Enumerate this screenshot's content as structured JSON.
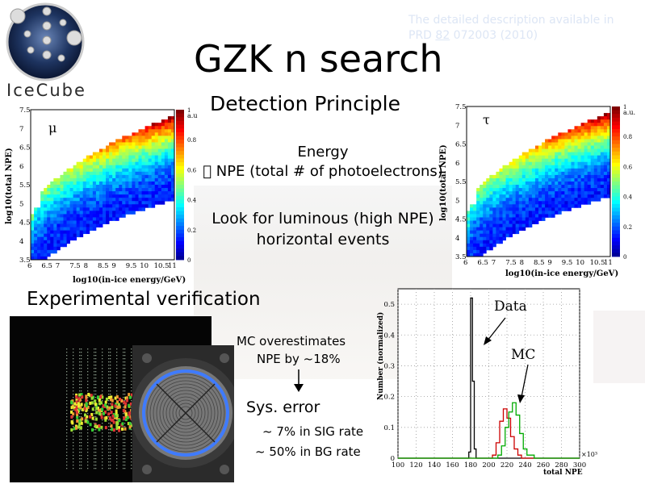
{
  "slide": {
    "reference_line1": "The detailed description available in",
    "reference_prefix": "PRD ",
    "reference_volume": "82",
    "reference_rest": " 072003 (2010)",
    "title": "GZK n search",
    "subtitle": "Detection Principle",
    "energy_label": "Energy",
    "npe_label": "\u0000 NPE (total # of photoelectrons)",
    "look_line1": "Look for luminous (high NPE)",
    "look_line2": "horizontal events",
    "experimental": "Experimental verification",
    "mc_line1": "MC  overestimates",
    "mc_line2": "NPE by ~18%",
    "sys_error": "Sys. error",
    "sig_rate": "~ 7% in SIG rate",
    "bg_rate": "~ 50% in BG rate",
    "logo_text": "IceCube"
  },
  "heatmap_left": {
    "particle": "μ",
    "ylabel": "log10(total NPE)",
    "xlabel": "log10(in-ice energy/GeV)",
    "colorbar_label": "a.u.",
    "x_ticks": [
      "6",
      "6.5",
      "7",
      "7.5",
      "8",
      "8.5",
      "9",
      "9.5",
      "10",
      "10.5",
      "11"
    ],
    "y_ticks": [
      "3.5",
      "4",
      "4.5",
      "5",
      "5.5",
      "6",
      "6.5",
      "7",
      "7.5"
    ],
    "colorbar_ticks": [
      "0",
      "0.2",
      "0.4",
      "0.6",
      "0.8",
      "1"
    ]
  },
  "heatmap_right": {
    "particle": "τ",
    "ylabel": "log10(total NPE)",
    "xlabel": "log10(in-ice energy/GeV)",
    "colorbar_label": "a.u.",
    "x_ticks": [
      "6",
      "6.5",
      "7",
      "7.5",
      "8",
      "8.5",
      "9",
      "9.5",
      "10",
      "10.5",
      "11"
    ],
    "y_ticks": [
      "3.5",
      "4",
      "4.5",
      "5",
      "5.5",
      "6",
      "6.5",
      "7",
      "7.5"
    ],
    "colorbar_ticks": [
      "0",
      "0.2",
      "0.4",
      "0.6",
      "0.8",
      "1"
    ]
  },
  "chart_data": {
    "type": "line",
    "xlabel": "total NPE",
    "ylabel": "Number (normalized)",
    "x_multiplier": "×10³",
    "xlim": [
      100,
      300
    ],
    "ylim": [
      0,
      0.55
    ],
    "x_ticks": [
      "100",
      "120",
      "140",
      "160",
      "180",
      "200",
      "220",
      "240",
      "260",
      "280",
      "300"
    ],
    "y_ticks": [
      "0",
      "0.1",
      "0.2",
      "0.3",
      "0.4",
      "0.5"
    ],
    "annotations": [
      "Data",
      "MC"
    ],
    "series": [
      {
        "name": "Data",
        "color": "#000000",
        "x": [
          170,
          176,
          178,
          180,
          182,
          184,
          186,
          190
        ],
        "y": [
          0,
          0,
          0.02,
          0.52,
          0.25,
          0.03,
          0,
          0
        ]
      },
      {
        "name": "",
        "color": "#cc0000",
        "x": [
          196,
          204,
          208,
          212,
          216,
          220,
          224,
          228,
          232,
          236,
          240
        ],
        "y": [
          0,
          0.01,
          0.05,
          0.12,
          0.16,
          0.13,
          0.07,
          0.03,
          0.01,
          0,
          0
        ]
      },
      {
        "name": "MC",
        "color": "#00aa00",
        "x": [
          200,
          210,
          214,
          218,
          222,
          226,
          230,
          234,
          238,
          242,
          250
        ],
        "y": [
          0,
          0.01,
          0.04,
          0.1,
          0.15,
          0.18,
          0.14,
          0.08,
          0.03,
          0.01,
          0
        ]
      }
    ]
  }
}
